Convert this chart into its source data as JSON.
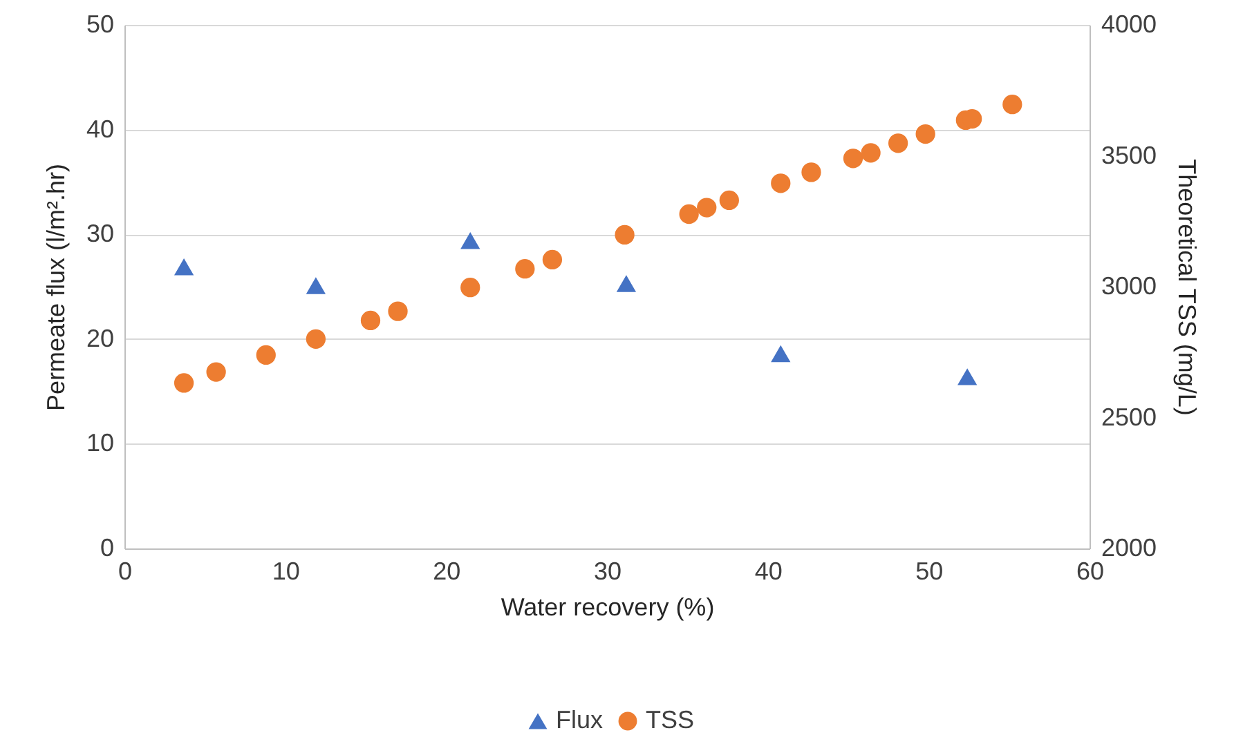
{
  "chart_data": {
    "type": "scatter",
    "xlabel": "Water recovery (%)",
    "ylabel": "Permeate flux (l/m².hr)",
    "y2label": "Theoretical TSS (mg/L)",
    "xlim": [
      0,
      60
    ],
    "xticks": [
      0,
      10,
      20,
      30,
      40,
      50,
      60
    ],
    "ylim": [
      0,
      50
    ],
    "yticks": [
      0,
      10,
      20,
      30,
      40,
      50
    ],
    "y2lim": [
      2000,
      4000
    ],
    "y2ticks": [
      2000,
      2500,
      3000,
      3500,
      4000
    ],
    "grid": "y",
    "legend": "bottom",
    "series": [
      {
        "name": "Flux",
        "color": "#4472c4",
        "marker": "triangle",
        "x": [
          3.7,
          11.9,
          21.5,
          31.2,
          40.8,
          52.4
        ],
        "values": [
          26.9,
          25.1,
          29.4,
          25.3,
          18.6,
          16.4
        ]
      },
      {
        "name": "TSS",
        "color": "#ed7d31",
        "marker": "circle",
        "axis": "y2",
        "x": [
          3.7,
          5.7,
          8.8,
          11.9,
          15.3,
          17,
          21.5,
          24.9,
          26.6,
          31.1,
          35.1,
          36.2,
          37.6,
          40.8,
          42.7,
          45.3,
          46.4,
          48.1,
          49.8,
          52.3,
          52.7,
          55.2
        ],
        "values": [
          2632,
          2674,
          2739,
          2800,
          2871,
          2906,
          2997,
          3068,
          3103,
          3198,
          3277,
          3302,
          3330,
          3395,
          3437,
          3490,
          3511,
          3548,
          3583,
          3636,
          3641,
          3696
        ]
      }
    ]
  }
}
